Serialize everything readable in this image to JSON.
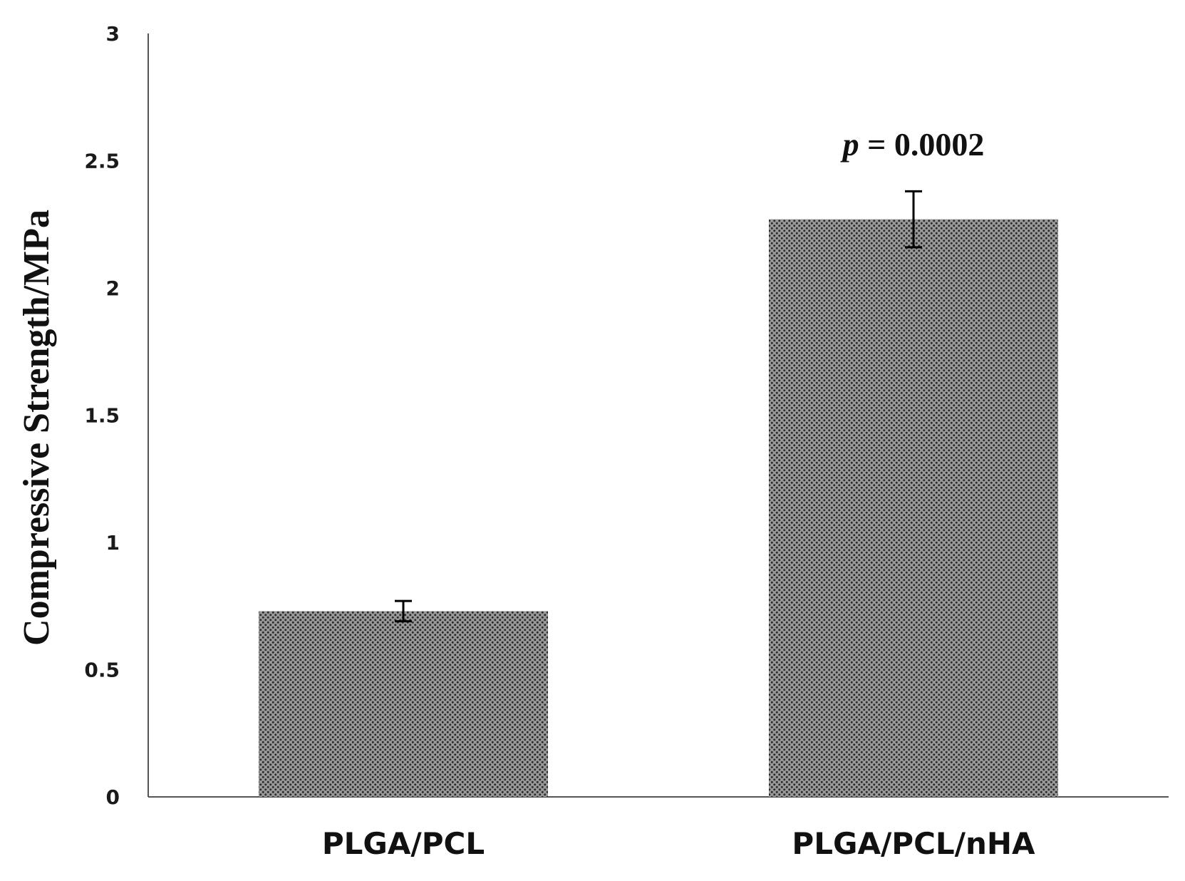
{
  "chart_data": {
    "type": "bar",
    "categories": [
      "PLGA/PCL",
      "PLGA/PCL/nHA"
    ],
    "values": [
      0.73,
      2.27
    ],
    "error": [
      0.04,
      0.11
    ],
    "ylabel": "Compressive Strength/MPa",
    "ylim": [
      0,
      3
    ],
    "yticks": [
      0,
      0.5,
      1,
      1.5,
      2,
      2.5,
      3
    ],
    "ytick_labels": [
      "0",
      "0.5",
      "1",
      "1.5",
      "2",
      "2.5",
      "3"
    ],
    "grid": false,
    "annotation": {
      "prefix": "p",
      "text": " = 0.0002",
      "category": "PLGA/PCL/nHA"
    },
    "bar_color": "#8c8c8c",
    "pattern_color": "#2b2b2b"
  }
}
